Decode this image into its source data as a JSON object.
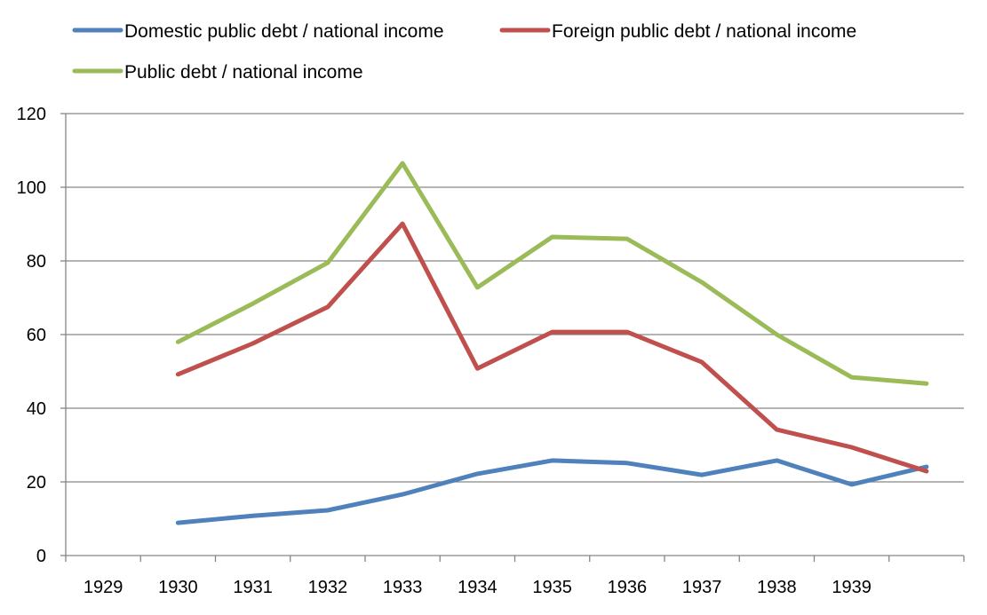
{
  "chart_data": {
    "type": "line",
    "title": "",
    "xlabel": "",
    "ylabel": "",
    "categories": [
      "1929",
      "1930",
      "1931",
      "1932",
      "1933",
      "1934",
      "1935",
      "1936",
      "1937",
      "1938",
      "1939",
      ""
    ],
    "ylim": [
      0,
      120
    ],
    "yticks": [
      "0",
      "20",
      "40",
      "60",
      "80",
      "100",
      "120"
    ],
    "grid": true,
    "legend_position": "top",
    "series": [
      {
        "name": "Domestic public debt /  national income",
        "color": "#4f81bd",
        "values": [
          null,
          8.9,
          10.8,
          12.3,
          16.6,
          22.2,
          25.8,
          25.1,
          21.9,
          25.8,
          19.3,
          24.1
        ]
      },
      {
        "name": "Foreign public debt / national income",
        "color": "#c0504d",
        "values": [
          null,
          49.2,
          57.6,
          67.5,
          90.1,
          50.8,
          60.7,
          60.7,
          52.5,
          34.2,
          29.4,
          22.9
        ]
      },
      {
        "name": "Public debt / national income",
        "color": "#9bbb59",
        "values": [
          null,
          58.0,
          68.4,
          79.5,
          106.5,
          72.8,
          86.5,
          86.0,
          74.2,
          60.0,
          48.4,
          46.7
        ]
      }
    ]
  }
}
